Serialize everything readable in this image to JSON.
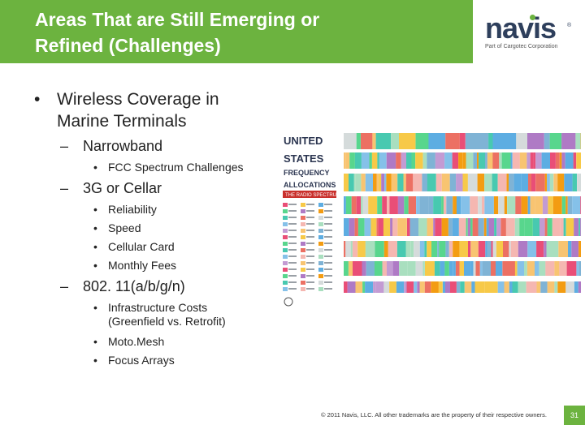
{
  "slide": {
    "title": "Areas That are Still Emerging  or\nRefined (Challenges)",
    "logo": {
      "brand": "navis",
      "reg": "®",
      "tagline": "Part of Cargotec Corporation"
    },
    "bullets": {
      "main": "Wireless Coverage in\nMarine Terminals",
      "narrowband": "Narrowband",
      "fcc": "FCC Spectrum Challenges",
      "cellular": "3G or Cellar",
      "reliability": "Reliability",
      "speed": "Speed",
      "card": "Cellular Card",
      "fees": "Monthly Fees",
      "wifi": "802. 11(a/b/g/n)",
      "infra": "Infrastructure Costs\n(Greenfield vs. Retrofit)",
      "moto": "Moto.Mesh",
      "focus": "Focus Arrays"
    },
    "chart_poster": {
      "line1": "UNITED",
      "line2": "STATES",
      "line3": "FREQUENCY",
      "line4": "ALLOCATIONS",
      "line5": "THE RADIO SPECTRUM"
    },
    "footer": "© 2011 Navis, LLC. All other trademarks are the property of their respective owners.",
    "page_number": "31",
    "colors": {
      "accent": "#6cb33f",
      "brand": "#2e3f5c"
    }
  }
}
